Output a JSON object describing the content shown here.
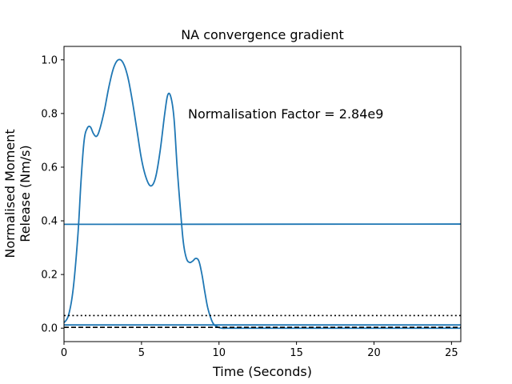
{
  "chart_data": {
    "type": "line",
    "title": "NA convergence gradient",
    "xlabel": "Time (Seconds)",
    "ylabel_lines": [
      "Normalised Moment",
      "Release (Nm/s)"
    ],
    "xlim": [
      0,
      25.6
    ],
    "ylim": [
      -0.05,
      1.05
    ],
    "xticks": [
      0,
      5,
      10,
      15,
      20,
      25
    ],
    "yticks": [
      0.0,
      0.2,
      0.4,
      0.6,
      0.8,
      1.0
    ],
    "xtick_labels": [
      "0",
      "5",
      "10",
      "15",
      "20",
      "25"
    ],
    "ytick_labels": [
      "0.0",
      "0.2",
      "0.4",
      "0.6",
      "0.8",
      "1.0"
    ],
    "grid": false,
    "annotation": {
      "text": "Normalisation Factor = 2.84e9",
      "x": 8.0,
      "y": 0.8
    },
    "series": [
      {
        "color": "#1f77b4",
        "style": "solid",
        "x": [
          0,
          0.3,
          0.6,
          0.9,
          1.1,
          1.3,
          1.5,
          1.7,
          1.9,
          2.1,
          2.3,
          2.6,
          2.9,
          3.2,
          3.5,
          3.8,
          4.1,
          4.4,
          4.7,
          5.0,
          5.3,
          5.6,
          5.9,
          6.2,
          6.5,
          6.7,
          6.9,
          7.1,
          7.3,
          7.5,
          7.7,
          7.9,
          8.1,
          8.3,
          8.5,
          8.7,
          8.9,
          9.1,
          9.3,
          9.6,
          9.9,
          10.2,
          10.5,
          11,
          12,
          14,
          16,
          18,
          20,
          22,
          24,
          25.6
        ],
        "y": [
          0.02,
          0.05,
          0.15,
          0.35,
          0.55,
          0.7,
          0.745,
          0.75,
          0.725,
          0.715,
          0.74,
          0.81,
          0.9,
          0.97,
          1.0,
          0.99,
          0.94,
          0.85,
          0.74,
          0.63,
          0.56,
          0.53,
          0.56,
          0.66,
          0.8,
          0.87,
          0.86,
          0.78,
          0.6,
          0.45,
          0.32,
          0.26,
          0.245,
          0.25,
          0.26,
          0.25,
          0.2,
          0.13,
          0.07,
          0.02,
          0.005,
          0.0,
          0.0,
          0.0,
          0.0,
          0.0,
          0.0,
          0.0,
          0.0,
          0.0,
          0.0,
          0.0
        ]
      },
      {
        "color": "#1f77b4",
        "style": "solid",
        "x": [
          0,
          25.6
        ],
        "y": [
          0.387,
          0.388
        ]
      },
      {
        "color": "#000000",
        "style": "dotted",
        "x": [
          0,
          25.6
        ],
        "y": [
          0.047,
          0.047
        ]
      },
      {
        "color": "#000000",
        "style": "dashed",
        "x": [
          0,
          25.6
        ],
        "y": [
          0.003,
          0.003
        ]
      },
      {
        "color": "#1f77b4",
        "style": "solid",
        "x": [
          0,
          25.6
        ],
        "y": [
          0.012,
          0.012
        ]
      }
    ]
  }
}
